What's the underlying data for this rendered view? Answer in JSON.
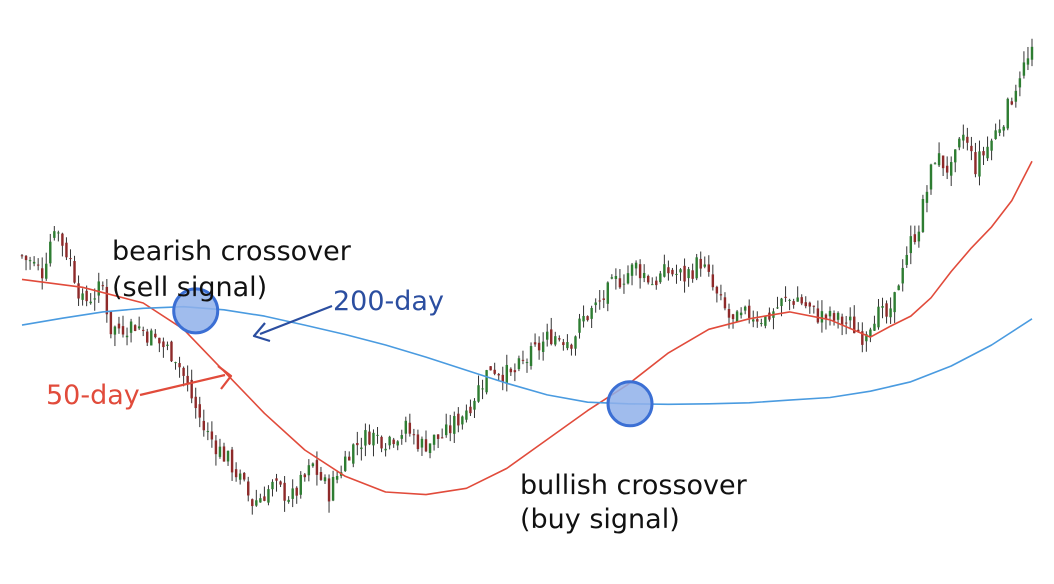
{
  "colors": {
    "up": "#2e7d32",
    "down": "#8e2a2a",
    "wick": "#333333",
    "ma50": "#e14b3b",
    "ma200": "#4a9be0",
    "marker_fill": "#8fb0ea",
    "marker_stroke": "#3b6fd4",
    "label_50": "#e14b3b",
    "label_200": "#2b4ea0",
    "text": "#111111"
  },
  "labels": {
    "bearish_title": "bearish crossover",
    "bearish_sub": "(sell signal)",
    "bullish_title": "bullish crossover",
    "bullish_sub": "(buy signal)",
    "ma50": "50-day",
    "ma200": "200-day"
  },
  "chart_data": {
    "type": "line",
    "title": "",
    "xlabel": "",
    "ylabel": "",
    "grid": false,
    "legend": "none",
    "x_range": [
      0,
      250
    ],
    "ylim": [
      0,
      100
    ],
    "candles": {
      "start_day": 0,
      "end_day": 250,
      "close_anchors": [
        [
          0,
          57
        ],
        [
          5,
          54
        ],
        [
          8,
          63
        ],
        [
          12,
          56
        ],
        [
          15,
          48
        ],
        [
          20,
          51
        ],
        [
          22,
          43
        ],
        [
          28,
          44
        ],
        [
          33,
          41
        ],
        [
          38,
          38
        ],
        [
          45,
          24
        ],
        [
          52,
          17
        ],
        [
          57,
          10
        ],
        [
          62,
          13
        ],
        [
          67,
          11
        ],
        [
          72,
          17
        ],
        [
          76,
          12
        ],
        [
          81,
          20
        ],
        [
          86,
          23
        ],
        [
          90,
          22
        ],
        [
          95,
          24
        ],
        [
          99,
          21
        ],
        [
          105,
          23
        ],
        [
          111,
          29
        ],
        [
          116,
          36
        ],
        [
          121,
          34
        ],
        [
          126,
          38
        ],
        [
          131,
          42
        ],
        [
          136,
          41
        ],
        [
          139,
          45
        ],
        [
          143,
          48
        ],
        [
          147,
          52
        ],
        [
          152,
          55
        ],
        [
          156,
          52
        ],
        [
          160,
          54
        ],
        [
          164,
          53
        ],
        [
          168,
          56
        ],
        [
          172,
          49
        ],
        [
          176,
          44
        ],
        [
          180,
          46
        ],
        [
          184,
          45
        ],
        [
          188,
          48
        ],
        [
          192,
          49
        ],
        [
          196,
          46
        ],
        [
          200,
          45
        ],
        [
          205,
          44
        ],
        [
          208,
          42
        ],
        [
          211,
          46
        ],
        [
          215,
          45
        ],
        [
          218,
          56
        ],
        [
          222,
          63
        ],
        [
          226,
          76
        ],
        [
          230,
          73
        ],
        [
          233,
          80
        ],
        [
          236,
          74
        ],
        [
          240,
          79
        ],
        [
          244,
          85
        ],
        [
          247,
          92
        ],
        [
          250,
          95
        ]
      ]
    },
    "series": [
      {
        "name": "50-day",
        "color": "#e14b3b",
        "x": [
          0,
          15,
          30,
          40,
          50,
          60,
          70,
          80,
          90,
          100,
          110,
          120,
          130,
          140,
          150,
          160,
          170,
          180,
          190,
          200,
          210,
          215,
          220,
          225,
          230,
          235,
          240,
          245,
          250
        ],
        "values": [
          52.5,
          51,
          48,
          43,
          35,
          27,
          20,
          15,
          12,
          11.5,
          12.7,
          16.5,
          22,
          27.5,
          32.5,
          38.5,
          43,
          45,
          46.3,
          44.8,
          41.5,
          43.6,
          45.5,
          49,
          54,
          58.5,
          62.5,
          67.5,
          75
        ]
      },
      {
        "name": "200-day",
        "color": "#4a9be0",
        "x": [
          0,
          10,
          20,
          30,
          40,
          50,
          60,
          70,
          80,
          90,
          100,
          110,
          120,
          130,
          140,
          150,
          160,
          170,
          180,
          190,
          200,
          210,
          220,
          230,
          240,
          250
        ],
        "values": [
          43.8,
          45.1,
          46.3,
          47,
          47.3,
          46.7,
          45.5,
          43.8,
          42,
          40,
          37.7,
          35.2,
          32.7,
          30.5,
          29.1,
          28.8,
          28.7,
          28.8,
          29,
          29.5,
          30,
          31.2,
          33,
          36,
          40,
          45
        ]
      }
    ],
    "annotations": [
      {
        "text": "bearish crossover (sell signal)",
        "x": 43,
        "y": 46.5,
        "kind": "crossover"
      },
      {
        "text": "bullish crossover (buy signal)",
        "x": 150.5,
        "y": 28.8,
        "kind": "crossover"
      }
    ]
  }
}
